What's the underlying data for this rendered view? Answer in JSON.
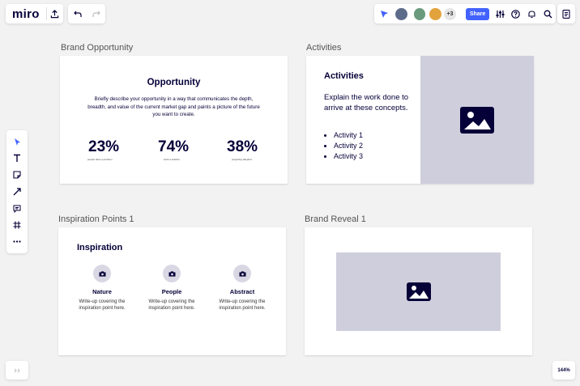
{
  "topbar": {
    "logo": "miro",
    "avatars_more": "+3",
    "share_label": "Share"
  },
  "zoom": "144%",
  "frames": {
    "opportunity": {
      "label": "Brand Opportunity",
      "heading": "Opportunity",
      "description": "Briefly describe your opportunity in a way that communicates the depth, breadth, and value of the current market gap and paints a picture of the future you want to create.",
      "stats": [
        {
          "value": "23%",
          "caption": "people have a problem"
        },
        {
          "value": "74%",
          "caption": "want a solution"
        },
        {
          "value": "38%",
          "caption": "projecting adoption"
        }
      ]
    },
    "activities": {
      "label": "Activities",
      "heading": "Activities",
      "description": "Explain the work done to arrive at these concepts.",
      "items": [
        "Activity 1",
        "Activity 2",
        "Activity 3"
      ]
    },
    "inspiration": {
      "label": "Inspiration Points 1",
      "heading": "Inspiration",
      "points": [
        {
          "title": "Nature",
          "text": "Write-up covering the inspiration point here."
        },
        {
          "title": "People",
          "text": "Write-up covering the inspiration point here."
        },
        {
          "title": "Abstract",
          "text": "Write-up covering the inspiration point here."
        }
      ]
    },
    "reveal": {
      "label": "Brand Reveal 1"
    }
  },
  "toolbar": {
    "tools": [
      "select-tool",
      "text-tool",
      "sticky-note-tool",
      "connector-tool",
      "comment-tool",
      "frame-tool",
      "more-tools"
    ]
  },
  "colors": {
    "brand_dark": "#050038",
    "accent": "#4262ff",
    "placeholder": "#cfcedc"
  }
}
